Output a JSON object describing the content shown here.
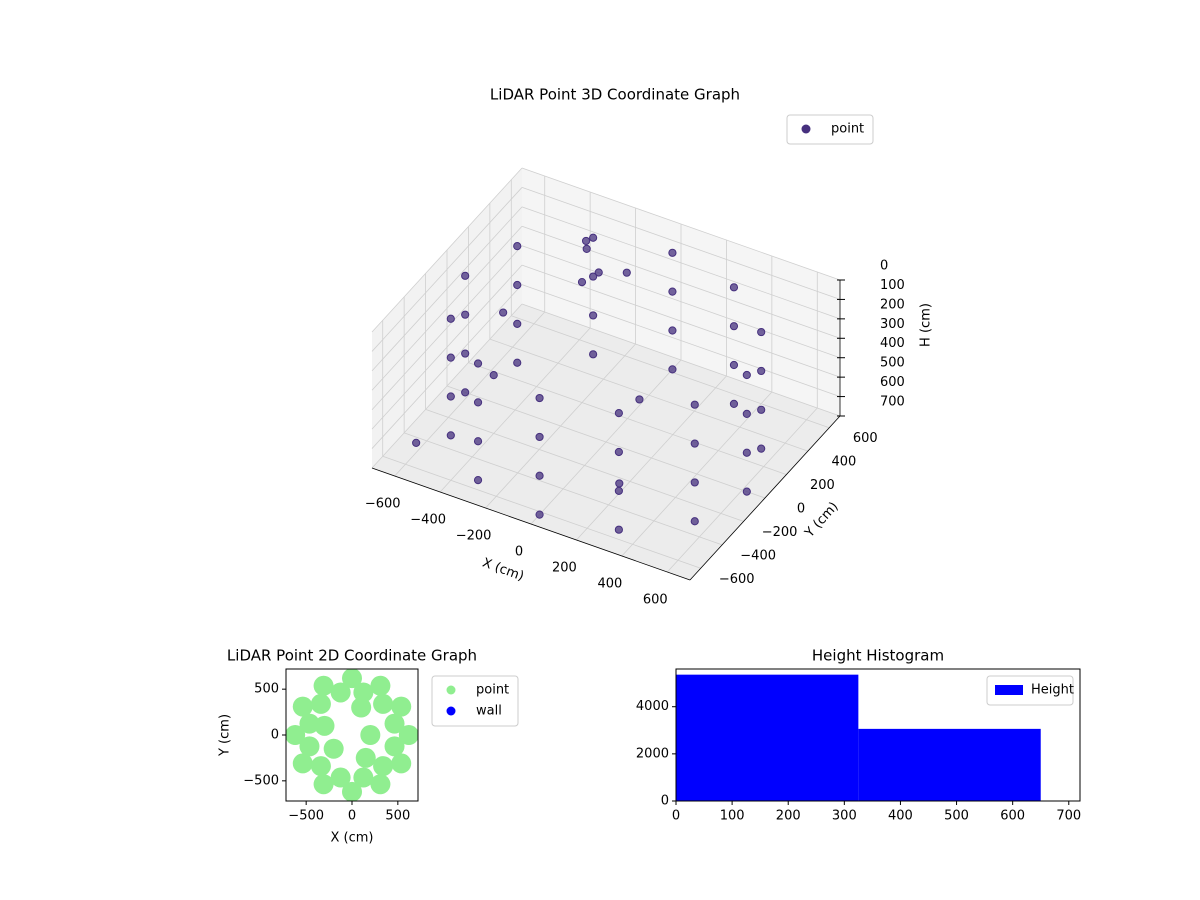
{
  "chart_data": [
    {
      "type": "scatter3d",
      "title": "LiDAR Point 3D Coordinate Graph",
      "xlabel": "X (cm)",
      "ylabel": "Y (cm)",
      "zlabel": "H (cm)",
      "xlim": [
        -700,
        700
      ],
      "ylim": [
        -700,
        700
      ],
      "zlim": [
        700,
        0
      ],
      "xticks": [
        {
          "value": -600,
          "label": "−600"
        },
        {
          "value": -400,
          "label": "−400"
        },
        {
          "value": -200,
          "label": "−200"
        },
        0,
        200,
        400,
        600
      ],
      "yticks": [
        {
          "value": -600,
          "label": "−600"
        },
        {
          "value": -400,
          "label": "−400"
        },
        {
          "value": -200,
          "label": "−200"
        },
        0,
        200,
        400,
        600
      ],
      "zticks": [
        0,
        100,
        200,
        300,
        400,
        500,
        600,
        700
      ],
      "grid": true,
      "legend": "upper right",
      "series": [
        {
          "name": "point",
          "color": "#46307e",
          "x": [
            620,
            537,
            310,
            0,
            -310,
            -537,
            -620,
            -537,
            -310,
            0,
            310,
            537,
            620,
            537,
            310,
            0,
            -310,
            -537,
            -620,
            -537,
            -310,
            0,
            310,
            537,
            620,
            537,
            310,
            0,
            -310,
            -537,
            -620,
            -537,
            -310,
            0,
            310,
            537,
            620,
            537,
            310,
            0,
            -310,
            -537,
            -620,
            -537,
            -310,
            0,
            310,
            537,
            -250,
            -150,
            -300,
            -50,
            -200,
            -400,
            200,
            -500,
            100,
            -600
          ],
          "y": [
            0,
            310,
            537,
            620,
            537,
            310,
            0,
            -310,
            -537,
            -620,
            -537,
            -310,
            0,
            310,
            537,
            620,
            537,
            310,
            0,
            -310,
            -537,
            -620,
            -537,
            -310,
            0,
            310,
            537,
            620,
            537,
            310,
            0,
            -310,
            -537,
            -620,
            -537,
            -310,
            0,
            310,
            537,
            620,
            537,
            310,
            0,
            -310,
            -537,
            -620,
            -537,
            -310,
            350,
            250,
            450,
            300,
            200,
            -200,
            -300,
            100,
            100,
            -500
          ],
          "z": [
            100,
            100,
            100,
            100,
            100,
            100,
            100,
            100,
            100,
            100,
            100,
            100,
            300,
            300,
            300,
            300,
            300,
            300,
            300,
            300,
            300,
            300,
            300,
            300,
            500,
            500,
            500,
            500,
            500,
            500,
            500,
            500,
            500,
            500,
            500,
            500,
            700,
            700,
            700,
            700,
            700,
            700,
            700,
            700,
            700,
            700,
            700,
            700,
            20,
            40,
            60,
            30,
            80,
            400,
            650,
            300,
            500,
            650
          ]
        }
      ]
    },
    {
      "type": "scatter",
      "title": "LiDAR Point 2D Coordinate Graph",
      "xlabel": "X (cm)",
      "ylabel": "Y (cm)",
      "xlim": [
        -720,
        720
      ],
      "ylim": [
        -720,
        720
      ],
      "xticks": [
        {
          "value": -500,
          "label": "−500"
        },
        0,
        500
      ],
      "yticks": [
        {
          "value": -500,
          "label": "−500"
        },
        0,
        500
      ],
      "legend": "outside upper right",
      "series": [
        {
          "name": "point",
          "color": "#90ee90",
          "x": [
            620,
            537,
            310,
            0,
            -310,
            -537,
            -620,
            -537,
            -310,
            0,
            310,
            537,
            464,
            339,
            124,
            -124,
            -339,
            -464,
            -464,
            -339,
            -124,
            124,
            339,
            464,
            200,
            -300,
            -200,
            100,
            150
          ],
          "y": [
            0,
            310,
            537,
            620,
            537,
            310,
            0,
            -310,
            -537,
            -620,
            -537,
            -310,
            124,
            339,
            464,
            464,
            339,
            124,
            -124,
            -339,
            -464,
            -464,
            -339,
            -124,
            0,
            100,
            -150,
            300,
            -250
          ]
        },
        {
          "name": "wall",
          "color": "#0000ff",
          "x": [],
          "y": []
        }
      ]
    },
    {
      "type": "histogram",
      "title": "Height Histogram",
      "name": "Height",
      "bins": [
        0,
        325,
        650
      ],
      "values": [
        5360,
        3060
      ],
      "color": "#0000ff",
      "xlim": [
        0,
        720
      ],
      "ylim": [
        0,
        5600
      ],
      "xticks": [
        0,
        100,
        200,
        300,
        400,
        500,
        600,
        700
      ],
      "yticks": [
        0,
        2000,
        4000
      ],
      "legend": "upper right"
    }
  ]
}
